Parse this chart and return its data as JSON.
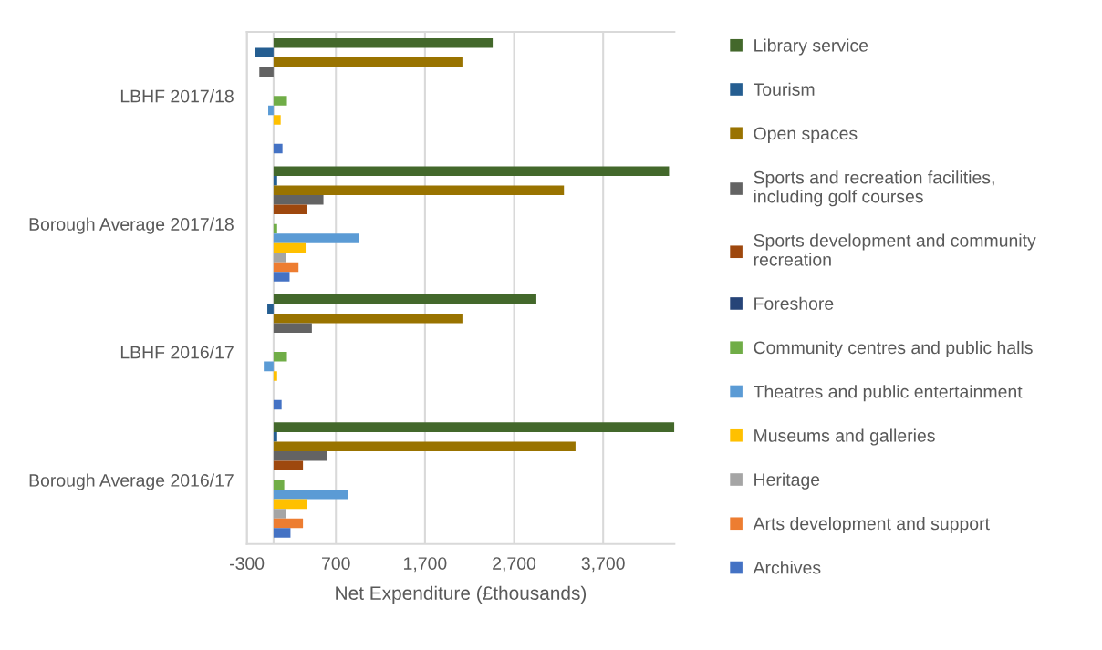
{
  "chart_data": {
    "type": "bar",
    "orientation": "horizontal",
    "xlabel": "Net Expenditure (£thousands)",
    "categories": [
      "LBHF 2017/18",
      "Borough Average 2017/18",
      "LBHF 2016/17",
      "Borough Average 2016/17"
    ],
    "series": [
      {
        "name": "Library service",
        "color": "#43682b",
        "values": [
          2460,
          4440,
          2950,
          4500
        ]
      },
      {
        "name": "Tourism",
        "color": "#255e91",
        "values": [
          -210,
          40,
          -70,
          40
        ]
      },
      {
        "name": "Open spaces",
        "color": "#997300",
        "values": [
          2120,
          3260,
          2120,
          3390
        ]
      },
      {
        "name": "Sports and recreation facilities,\nincluding golf courses",
        "color": "#636363",
        "values": [
          -160,
          560,
          430,
          600
        ]
      },
      {
        "name": "Sports development and community\nrecreation",
        "color": "#9e480e",
        "values": [
          0,
          380,
          0,
          330
        ]
      },
      {
        "name": "Foreshore",
        "color": "#264478",
        "values": [
          0,
          0,
          0,
          0
        ]
      },
      {
        "name": "Community centres and public halls",
        "color": "#70ad47",
        "values": [
          150,
          40,
          150,
          120
        ]
      },
      {
        "name": "Theatres and public entertainment",
        "color": "#5b9bd5",
        "values": [
          -60,
          960,
          -110,
          840
        ]
      },
      {
        "name": "Museums and galleries",
        "color": "#ffc000",
        "values": [
          80,
          360,
          40,
          380
        ]
      },
      {
        "name": "Heritage",
        "color": "#a5a5a5",
        "values": [
          0,
          140,
          0,
          140
        ]
      },
      {
        "name": "Arts development and support",
        "color": "#ed7d31",
        "values": [
          0,
          280,
          0,
          330
        ]
      },
      {
        "name": "Archives",
        "color": "#4472c4",
        "values": [
          100,
          180,
          90,
          190
        ]
      }
    ],
    "xlim": [
      -300,
      4500
    ],
    "xticks": [
      {
        "value": -300,
        "label": "-300"
      },
      {
        "value": 700,
        "label": "700"
      },
      {
        "value": 1700,
        "label": "1,700"
      },
      {
        "value": 2700,
        "label": "2,700"
      },
      {
        "value": 3700,
        "label": "3,700"
      }
    ],
    "grid": "x",
    "legend": "right"
  }
}
